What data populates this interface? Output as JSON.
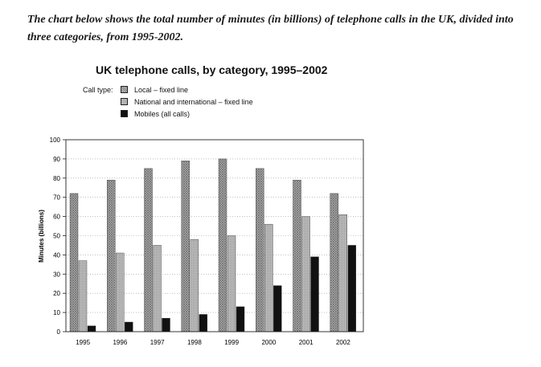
{
  "prompt": "The chart below shows the total number of minutes (in billions) of telephone calls in the UK, divided into three categories, from 1995-2002.",
  "legend_caption": "Call type:",
  "chart_data": {
    "type": "bar",
    "title": "UK telephone calls, by category, 1995–2002",
    "xlabel": "",
    "ylabel": "Minutes (billions)",
    "ylim": [
      0,
      100
    ],
    "yticks": [
      0,
      10,
      20,
      30,
      40,
      50,
      60,
      70,
      80,
      90,
      100
    ],
    "categories": [
      "1995",
      "1996",
      "1997",
      "1998",
      "1999",
      "2000",
      "2001",
      "2002"
    ],
    "grid": true,
    "legend_position": "top-left",
    "series": [
      {
        "name": "Local – fixed line",
        "values": [
          72,
          79,
          85,
          89,
          90,
          85,
          79,
          72
        ],
        "color": "#9a9a9a",
        "pattern": "crosshatch"
      },
      {
        "name": "National and international – fixed line",
        "values": [
          37,
          41,
          45,
          48,
          50,
          56,
          60,
          61
        ],
        "color": "#b3b3b3",
        "pattern": "dots"
      },
      {
        "name": "Mobiles (all calls)",
        "values": [
          3,
          5,
          7,
          9,
          13,
          24,
          39,
          45
        ],
        "color": "#111111",
        "pattern": "solid"
      }
    ]
  }
}
